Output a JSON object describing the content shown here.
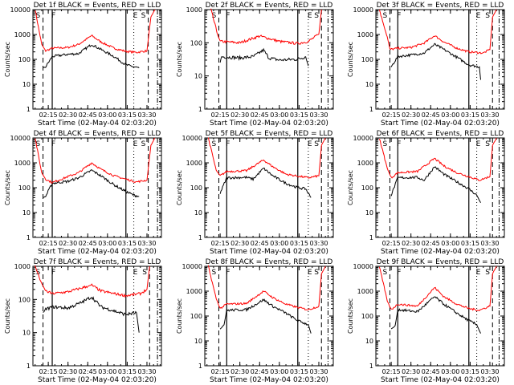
{
  "figure": {
    "ylabel": "Counts/sec",
    "xlabel": "Start Time (02-May-04 02:03:20)",
    "legend_note": "BLACK = Events, RED = LLD"
  },
  "chart_data": {
    "type": "line",
    "layout": "3x3 grid",
    "x_start": "02:03:20",
    "x_end": "03:41:00",
    "x_tick_labels": [
      "02:15",
      "02:30",
      "02:45",
      "03:00",
      "03:15",
      "03:30"
    ],
    "y_scale": "log",
    "series_colors": {
      "events": "#000000",
      "lld": "#ff0000"
    },
    "marker_letters": [
      "S",
      "F",
      "E",
      "S"
    ],
    "panels": [
      {
        "title": "Det 1f BLACK = Events, RED = LLD",
        "ylim": [
          1,
          10000
        ],
        "y_ticks": [
          "1",
          "10",
          "100",
          "1000",
          "10000"
        ],
        "vlines": {
          "dashed": [
            "02:11",
            "03:31"
          ],
          "solid": [
            "02:18",
            "03:14"
          ],
          "dotted": [
            "03:20"
          ],
          "dashdot": [
            "03:38"
          ]
        },
        "events": {
          "x": [
            "02:11",
            "02:13",
            "02:18",
            "02:30",
            "02:38",
            "02:48",
            "02:55",
            "03:05",
            "03:14",
            "03:20",
            "03:24"
          ],
          "y": [
            45,
            50,
            130,
            160,
            170,
            400,
            250,
            130,
            60,
            50,
            45
          ]
        },
        "lld": {
          "x": [
            "02:05",
            "02:10",
            "02:13",
            "02:18",
            "02:30",
            "02:38",
            "02:48",
            "02:55",
            "03:05",
            "03:14",
            "03:22",
            "03:30",
            "03:33",
            "03:36"
          ],
          "y": [
            10000,
            400,
            220,
            280,
            300,
            400,
            900,
            500,
            280,
            210,
            190,
            220,
            5000,
            10000
          ]
        }
      },
      {
        "title": "Det 2f BLACK = Events, RED = LLD",
        "ylim": [
          1,
          1000
        ],
        "y_ticks": [
          "1",
          "10",
          "100",
          "1000"
        ],
        "vlines": {
          "dashed": [
            "02:14",
            "03:32"
          ],
          "solid": [
            "02:20",
            "03:14"
          ],
          "dotted": [
            "03:22"
          ],
          "dashdot": [
            "03:37"
          ]
        },
        "events": {
          "x": [
            "02:15",
            "02:16",
            "02:30",
            "02:40",
            "02:48",
            "02:52",
            "03:00",
            "03:14",
            "03:20",
            "03:22"
          ],
          "y": [
            25,
            38,
            35,
            38,
            60,
            35,
            30,
            32,
            38,
            20
          ]
        },
        "lld": {
          "x": [
            "02:08",
            "02:13",
            "02:15",
            "02:30",
            "02:45",
            "03:00",
            "03:14",
            "03:22",
            "03:30",
            "03:32"
          ],
          "y": [
            1000,
            180,
            110,
            100,
            160,
            110,
            95,
            110,
            180,
            1000
          ]
        }
      },
      {
        "title": "Det 3f BLACK = Events, RED = LLD",
        "ylim": [
          1,
          10000
        ],
        "y_ticks": [
          "1",
          "10",
          "100",
          "1000",
          "10000"
        ],
        "vlines": {
          "dashed": [
            "02:14",
            "03:32"
          ],
          "solid": [
            "02:20",
            "03:14"
          ],
          "dotted": [
            "03:20"
          ],
          "dashdot": [
            "03:37"
          ]
        },
        "events": {
          "x": [
            "02:15",
            "02:20",
            "02:30",
            "02:40",
            "02:48",
            "02:55",
            "03:05",
            "03:14",
            "03:22",
            "03:23"
          ],
          "y": [
            50,
            130,
            150,
            180,
            400,
            250,
            120,
            60,
            50,
            15
          ]
        },
        "lld": {
          "x": [
            "02:06",
            "02:12",
            "02:14",
            "02:20",
            "02:30",
            "02:40",
            "02:48",
            "02:55",
            "03:05",
            "03:14",
            "03:25",
            "03:30",
            "03:32",
            "03:35"
          ],
          "y": [
            10000,
            800,
            250,
            280,
            300,
            450,
            900,
            500,
            280,
            200,
            180,
            250,
            5000,
            10000
          ]
        }
      },
      {
        "title": "Det 4f BLACK = Events, RED = LLD",
        "ylim": [
          1,
          10000
        ],
        "y_ticks": [
          "1",
          "10",
          "100",
          "1000",
          "10000"
        ],
        "vlines": {
          "dashed": [
            "02:11",
            "03:31"
          ],
          "solid": [
            "02:18",
            "03:14"
          ],
          "dotted": [
            "03:20"
          ],
          "dashdot": [
            "03:38"
          ]
        },
        "events": {
          "x": [
            "02:11",
            "02:13",
            "02:18",
            "02:30",
            "02:38",
            "02:48",
            "02:55",
            "03:05",
            "03:14",
            "03:20",
            "03:24"
          ],
          "y": [
            40,
            45,
            150,
            180,
            250,
            500,
            300,
            130,
            70,
            50,
            45
          ]
        },
        "lld": {
          "x": [
            "02:05",
            "02:10",
            "02:13",
            "02:18",
            "02:30",
            "02:38",
            "02:48",
            "02:55",
            "03:05",
            "03:14",
            "03:22",
            "03:30",
            "03:33",
            "03:36"
          ],
          "y": [
            10000,
            400,
            220,
            160,
            280,
            400,
            1000,
            550,
            300,
            220,
            170,
            200,
            5000,
            10000
          ]
        }
      },
      {
        "title": "Det 5f BLACK = Events, RED = LLD",
        "ylim": [
          1,
          10000
        ],
        "y_ticks": [
          "1",
          "10",
          "100",
          "1000",
          "10000"
        ],
        "vlines": {
          "dashed": [
            "02:14",
            "03:32"
          ],
          "solid": [
            "02:20",
            "03:14"
          ],
          "dotted": [
            "03:22"
          ],
          "dashdot": [
            "03:37"
          ]
        },
        "events": {
          "x": [
            "02:15",
            "02:20",
            "02:35",
            "02:40",
            "02:48",
            "02:55",
            "03:05",
            "03:14",
            "03:20",
            "03:24"
          ],
          "y": [
            60,
            250,
            260,
            220,
            600,
            300,
            150,
            100,
            90,
            40
          ]
        },
        "lld": {
          "x": [
            "02:06",
            "02:12",
            "02:15",
            "02:20",
            "02:35",
            "02:48",
            "02:55",
            "03:05",
            "03:14",
            "03:22",
            "03:30",
            "03:32",
            "03:35"
          ],
          "y": [
            10000,
            500,
            300,
            450,
            480,
            1300,
            700,
            350,
            290,
            250,
            300,
            5000,
            10000
          ]
        }
      },
      {
        "title": "Det 6f BLACK = Events, RED = LLD",
        "ylim": [
          1,
          10000
        ],
        "y_ticks": [
          "1",
          "10",
          "100",
          "1000",
          "10000"
        ],
        "vlines": {
          "dashed": [
            "02:14",
            "03:32"
          ],
          "solid": [
            "02:20",
            "03:14"
          ],
          "dotted": [
            "03:20"
          ],
          "dashdot": [
            "03:37"
          ]
        },
        "events": {
          "x": [
            "02:15",
            "02:20",
            "02:35",
            "02:40",
            "02:48",
            "02:55",
            "03:05",
            "03:14",
            "03:20",
            "03:23"
          ],
          "y": [
            50,
            250,
            260,
            200,
            700,
            350,
            170,
            90,
            50,
            25
          ]
        },
        "lld": {
          "x": [
            "02:06",
            "02:12",
            "02:15",
            "02:20",
            "02:35",
            "02:48",
            "02:55",
            "03:05",
            "03:14",
            "03:22",
            "03:30",
            "03:32",
            "03:35"
          ],
          "y": [
            10000,
            600,
            250,
            400,
            450,
            1500,
            750,
            400,
            280,
            200,
            280,
            5000,
            10000
          ]
        }
      },
      {
        "title": "Det 7f BLACK = Events, RED = LLD",
        "ylim": [
          1,
          1000
        ],
        "y_ticks": [
          "1",
          "10",
          "100",
          "1000"
        ],
        "vlines": {
          "dashed": [
            "02:11",
            "03:32"
          ],
          "solid": [
            "02:18",
            "03:14"
          ],
          "dotted": [
            "03:20"
          ],
          "dashdot": [
            "03:38"
          ]
        },
        "events": {
          "x": [
            "02:11",
            "02:13",
            "02:18",
            "02:30",
            "02:40",
            "02:48",
            "02:55",
            "03:05",
            "03:14",
            "03:22",
            "03:24"
          ],
          "y": [
            40,
            50,
            60,
            55,
            80,
            120,
            60,
            45,
            35,
            40,
            10
          ]
        },
        "lld": {
          "x": [
            "02:05",
            "02:10",
            "02:13",
            "02:18",
            "02:30",
            "02:45",
            "02:48",
            "02:55",
            "03:05",
            "03:14",
            "03:25",
            "03:30",
            "03:32"
          ],
          "y": [
            1000,
            300,
            180,
            150,
            170,
            250,
            270,
            180,
            150,
            130,
            150,
            200,
            1000
          ]
        }
      },
      {
        "title": "Det 8f BLACK = Events, RED = LLD",
        "ylim": [
          1,
          10000
        ],
        "y_ticks": [
          "1",
          "10",
          "100",
          "1000",
          "10000"
        ],
        "vlines": {
          "dashed": [
            "02:14",
            "03:32"
          ],
          "solid": [
            "02:20",
            "03:14"
          ],
          "dotted": [
            "03:22"
          ],
          "dashdot": [
            "03:37"
          ]
        },
        "events": {
          "x": [
            "02:15",
            "02:18",
            "02:20",
            "02:35",
            "02:48",
            "02:55",
            "03:05",
            "03:14",
            "03:22",
            "03:24"
          ],
          "y": [
            30,
            45,
            170,
            180,
            450,
            250,
            130,
            65,
            45,
            20
          ]
        },
        "lld": {
          "x": [
            "02:06",
            "02:12",
            "02:15",
            "02:20",
            "02:35",
            "02:48",
            "02:55",
            "03:05",
            "03:14",
            "03:22",
            "03:30",
            "03:32",
            "03:35"
          ],
          "y": [
            10000,
            500,
            200,
            300,
            320,
            1000,
            550,
            300,
            220,
            180,
            250,
            5000,
            10000
          ]
        }
      },
      {
        "title": "Det 9f BLACK = Events, RED = LLD",
        "ylim": [
          1,
          10000
        ],
        "y_ticks": [
          "1",
          "10",
          "100",
          "1000",
          "10000"
        ],
        "vlines": {
          "dashed": [
            "02:14",
            "03:32"
          ],
          "solid": [
            "02:20",
            "03:14"
          ],
          "dotted": [
            "03:20"
          ],
          "dashdot": [
            "03:37"
          ]
        },
        "events": {
          "x": [
            "02:15",
            "02:18",
            "02:20",
            "02:35",
            "02:48",
            "02:55",
            "03:05",
            "03:14",
            "03:20",
            "03:23"
          ],
          "y": [
            30,
            40,
            180,
            150,
            600,
            300,
            130,
            65,
            45,
            20
          ]
        },
        "lld": {
          "x": [
            "02:06",
            "02:12",
            "02:15",
            "02:20",
            "02:35",
            "02:48",
            "02:55",
            "03:05",
            "03:14",
            "03:22",
            "03:30",
            "03:32",
            "03:35"
          ],
          "y": [
            10000,
            400,
            180,
            300,
            250,
            1400,
            600,
            300,
            200,
            170,
            250,
            5000,
            10000
          ]
        }
      }
    ]
  }
}
